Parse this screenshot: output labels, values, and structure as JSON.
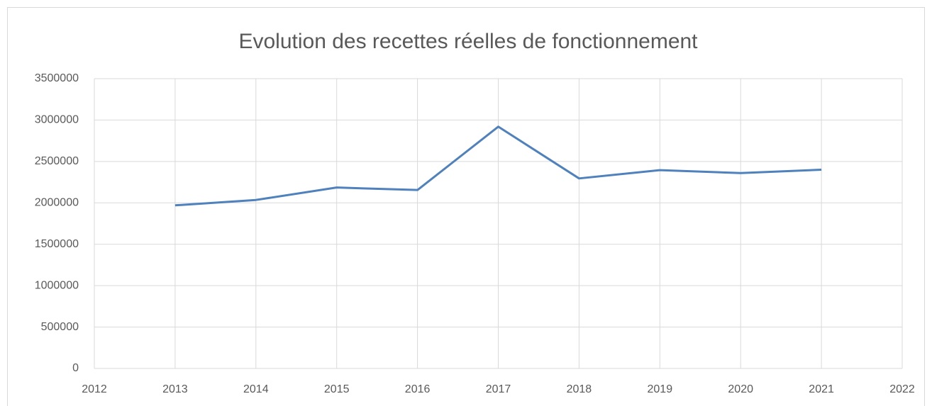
{
  "chart_data": {
    "type": "line",
    "title": "Evolution des recettes réelles de fonctionnement",
    "x": [
      2013,
      2014,
      2015,
      2016,
      2017,
      2018,
      2019,
      2020,
      2021
    ],
    "series": [
      {
        "name": "Recettes réelles de fonctionnement",
        "color": "#4f81bd",
        "values": [
          1970000,
          2035000,
          2185000,
          2155000,
          2920000,
          2295000,
          2395000,
          2360000,
          2400000
        ]
      }
    ],
    "xlim": [
      2012,
      2022
    ],
    "xticks": [
      2012,
      2013,
      2014,
      2015,
      2016,
      2017,
      2018,
      2019,
      2020,
      2021,
      2022
    ],
    "ylim": [
      0,
      3500000
    ],
    "yticks": [
      0,
      500000,
      1000000,
      1500000,
      2000000,
      2500000,
      3000000,
      3500000
    ],
    "grid": true
  }
}
